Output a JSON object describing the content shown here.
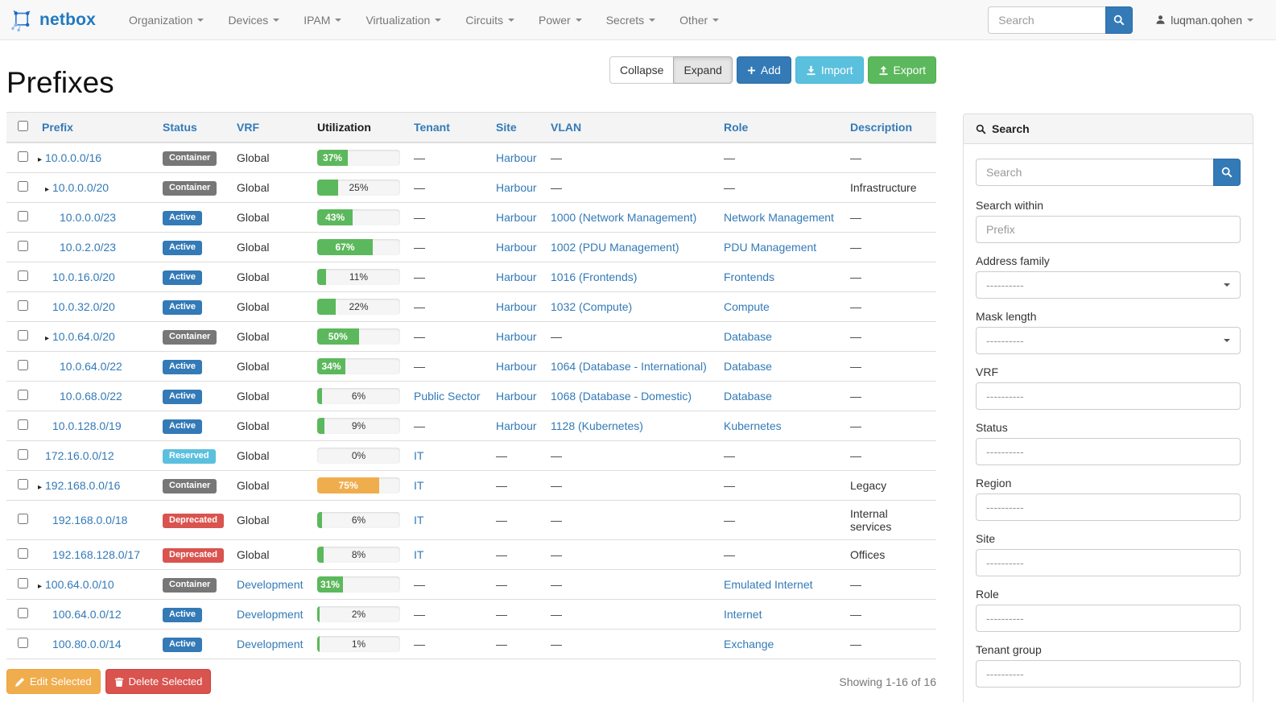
{
  "navbar": {
    "brand": "netbox",
    "items": [
      "Organization",
      "Devices",
      "IPAM",
      "Virtualization",
      "Circuits",
      "Power",
      "Secrets",
      "Other"
    ],
    "search_placeholder": "Search",
    "user": "luqman.qohen"
  },
  "header": {
    "title": "Prefixes",
    "buttons": {
      "collapse": "Collapse",
      "expand": "Expand",
      "add": "Add",
      "import": "Import",
      "export": "Export"
    }
  },
  "table": {
    "columns": [
      "Prefix",
      "Status",
      "VRF",
      "Utilization",
      "Tenant",
      "Site",
      "VLAN",
      "Role",
      "Description"
    ],
    "em_dash": "—",
    "rows": [
      {
        "prefix": "10.0.0.0/16",
        "depth": 0,
        "expandable": true,
        "status": "Container",
        "vrf": "Global",
        "vrf_link": false,
        "utilization": 37,
        "utilization_label": "37%",
        "util_color": "success",
        "tenant": "",
        "site": "Harbour",
        "vlan": "",
        "role": "",
        "description": ""
      },
      {
        "prefix": "10.0.0.0/20",
        "depth": 1,
        "expandable": true,
        "status": "Container",
        "vrf": "Global",
        "vrf_link": false,
        "utilization": 25,
        "utilization_label": "25%",
        "util_color": "success",
        "tenant": "",
        "site": "Harbour",
        "vlan": "",
        "role": "",
        "description": "Infrastructure"
      },
      {
        "prefix": "10.0.0.0/23",
        "depth": 2,
        "expandable": false,
        "status": "Active",
        "vrf": "Global",
        "vrf_link": false,
        "utilization": 43,
        "utilization_label": "43%",
        "util_color": "success",
        "tenant": "",
        "site": "Harbour",
        "vlan": "1000 (Network Management)",
        "role": "Network Management",
        "description": ""
      },
      {
        "prefix": "10.0.2.0/23",
        "depth": 2,
        "expandable": false,
        "status": "Active",
        "vrf": "Global",
        "vrf_link": false,
        "utilization": 67,
        "utilization_label": "67%",
        "util_color": "success",
        "tenant": "",
        "site": "Harbour",
        "vlan": "1002 (PDU Management)",
        "role": "PDU Management",
        "description": ""
      },
      {
        "prefix": "10.0.16.0/20",
        "depth": 1,
        "expandable": false,
        "status": "Active",
        "vrf": "Global",
        "vrf_link": false,
        "utilization": 11,
        "utilization_label": "11%",
        "util_color": "success",
        "tenant": "",
        "site": "Harbour",
        "vlan": "1016 (Frontends)",
        "role": "Frontends",
        "description": ""
      },
      {
        "prefix": "10.0.32.0/20",
        "depth": 1,
        "expandable": false,
        "status": "Active",
        "vrf": "Global",
        "vrf_link": false,
        "utilization": 22,
        "utilization_label": "22%",
        "util_color": "success",
        "tenant": "",
        "site": "Harbour",
        "vlan": "1032 (Compute)",
        "role": "Compute",
        "description": ""
      },
      {
        "prefix": "10.0.64.0/20",
        "depth": 1,
        "expandable": true,
        "status": "Container",
        "vrf": "Global",
        "vrf_link": false,
        "utilization": 50,
        "utilization_label": "50%",
        "util_color": "success",
        "tenant": "",
        "site": "Harbour",
        "vlan": "",
        "role": "Database",
        "description": ""
      },
      {
        "prefix": "10.0.64.0/22",
        "depth": 2,
        "expandable": false,
        "status": "Active",
        "vrf": "Global",
        "vrf_link": false,
        "utilization": 34,
        "utilization_label": "34%",
        "util_color": "success",
        "tenant": "",
        "site": "Harbour",
        "vlan": "1064 (Database - International)",
        "role": "Database",
        "description": ""
      },
      {
        "prefix": "10.0.68.0/22",
        "depth": 2,
        "expandable": false,
        "status": "Active",
        "vrf": "Global",
        "vrf_link": false,
        "utilization": 6,
        "utilization_label": "6%",
        "util_color": "success",
        "tenant": "Public Sector",
        "site": "Harbour",
        "vlan": "1068 (Database - Domestic)",
        "role": "Database",
        "description": ""
      },
      {
        "prefix": "10.0.128.0/19",
        "depth": 1,
        "expandable": false,
        "status": "Active",
        "vrf": "Global",
        "vrf_link": false,
        "utilization": 9,
        "utilization_label": "9%",
        "util_color": "success",
        "tenant": "",
        "site": "Harbour",
        "vlan": "1128 (Kubernetes)",
        "role": "Kubernetes",
        "description": ""
      },
      {
        "prefix": "172.16.0.0/12",
        "depth": 0,
        "expandable": false,
        "status": "Reserved",
        "vrf": "Global",
        "vrf_link": false,
        "utilization": 0,
        "utilization_label": "0%",
        "util_color": "success",
        "tenant": "IT",
        "site": "",
        "vlan": "",
        "role": "",
        "description": ""
      },
      {
        "prefix": "192.168.0.0/16",
        "depth": 0,
        "expandable": true,
        "status": "Container",
        "vrf": "Global",
        "vrf_link": false,
        "utilization": 75,
        "utilization_label": "75%",
        "util_color": "warning",
        "tenant": "IT",
        "site": "",
        "vlan": "",
        "role": "",
        "description": "Legacy"
      },
      {
        "prefix": "192.168.0.0/18",
        "depth": 1,
        "expandable": false,
        "status": "Deprecated",
        "vrf": "Global",
        "vrf_link": false,
        "utilization": 6,
        "utilization_label": "6%",
        "util_color": "success",
        "tenant": "IT",
        "site": "",
        "vlan": "",
        "role": "",
        "description": "Internal services"
      },
      {
        "prefix": "192.168.128.0/17",
        "depth": 1,
        "expandable": false,
        "status": "Deprecated",
        "vrf": "Global",
        "vrf_link": false,
        "utilization": 8,
        "utilization_label": "8%",
        "util_color": "success",
        "tenant": "IT",
        "site": "",
        "vlan": "",
        "role": "",
        "description": "Offices"
      },
      {
        "prefix": "100.64.0.0/10",
        "depth": 0,
        "expandable": true,
        "status": "Container",
        "vrf": "Development",
        "vrf_link": true,
        "utilization": 31,
        "utilization_label": "31%",
        "util_color": "success",
        "tenant": "",
        "site": "",
        "vlan": "",
        "role": "Emulated Internet",
        "description": ""
      },
      {
        "prefix": "100.64.0.0/12",
        "depth": 1,
        "expandable": false,
        "status": "Active",
        "vrf": "Development",
        "vrf_link": true,
        "utilization": 2,
        "utilization_label": "2%",
        "util_color": "success",
        "tenant": "",
        "site": "",
        "vlan": "",
        "role": "Internet",
        "description": ""
      },
      {
        "prefix": "100.80.0.0/14",
        "depth": 1,
        "expandable": false,
        "status": "Active",
        "vrf": "Development",
        "vrf_link": true,
        "utilization": 1,
        "utilization_label": "1%",
        "util_color": "success",
        "tenant": "",
        "site": "",
        "vlan": "",
        "role": "Exchange",
        "description": ""
      }
    ]
  },
  "footer": {
    "edit_label": "Edit Selected",
    "delete_label": "Delete Selected",
    "showing": "Showing 1-16 of 16"
  },
  "sidebar": {
    "title": "Search",
    "search_placeholder": "Search",
    "fields": [
      {
        "label": "Search within",
        "kind": "text",
        "placeholder": "Prefix",
        "value": ""
      },
      {
        "label": "Address family",
        "kind": "select",
        "value": "----------"
      },
      {
        "label": "Mask length",
        "kind": "select",
        "value": "----------"
      },
      {
        "label": "VRF",
        "kind": "filter",
        "value": "----------"
      },
      {
        "label": "Status",
        "kind": "filter",
        "value": "----------"
      },
      {
        "label": "Region",
        "kind": "filter",
        "value": "----------"
      },
      {
        "label": "Site",
        "kind": "filter",
        "value": "----------"
      },
      {
        "label": "Role",
        "kind": "filter",
        "value": "----------"
      },
      {
        "label": "Tenant group",
        "kind": "filter",
        "value": "----------"
      }
    ]
  },
  "colors": {
    "primary": "#337ab7",
    "info": "#5bc0de",
    "success": "#5cb85c",
    "warning": "#f0ad4e",
    "danger": "#d9534f",
    "status": {
      "Container": "#777777",
      "Active": "#337ab7",
      "Reserved": "#5bc0de",
      "Deprecated": "#d9534f"
    },
    "util": {
      "success": "#5cb85c",
      "warning": "#f0ad4e"
    }
  }
}
